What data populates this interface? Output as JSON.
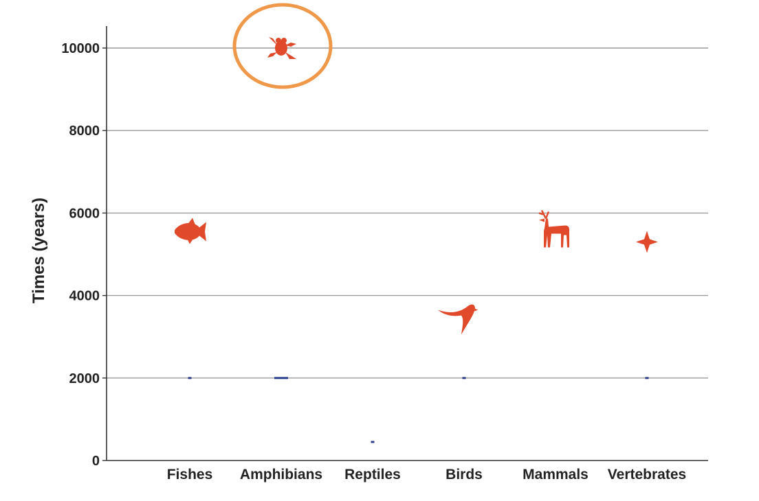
{
  "chart_data": {
    "type": "scatter",
    "title": "",
    "xlabel": "",
    "ylabel": "Times (years)",
    "ylim": [
      0,
      10500
    ],
    "yticks": [
      0,
      2000,
      4000,
      6000,
      8000,
      10000
    ],
    "grid": true,
    "categories": [
      "Fishes",
      "Amphibians",
      "Reptiles",
      "Birds",
      "Mammals",
      "Vertebrates"
    ],
    "series": [
      {
        "marker_color": "#e04a2a",
        "points": [
          {
            "category": "Fishes",
            "value": 5550,
            "icon": "fish-icon"
          },
          {
            "category": "Amphibians",
            "value": 10000,
            "icon": "frog-icon"
          },
          {
            "category": "Birds",
            "value": 3450,
            "icon": "bird-icon"
          },
          {
            "category": "Mammals",
            "value": 5500,
            "icon": "deer-icon"
          },
          {
            "category": "Vertebrates",
            "value": 5300,
            "icon": "star-icon"
          }
        ]
      },
      {
        "marker_color": "#2c3e8f",
        "points": [
          {
            "category": "Fishes",
            "value": 2000
          },
          {
            "category": "Amphibians",
            "value": 2000
          },
          {
            "category": "Reptiles",
            "value": 450
          },
          {
            "category": "Birds",
            "value": 2000
          },
          {
            "category": "Vertebrates",
            "value": 2000
          }
        ]
      }
    ],
    "highlight": {
      "category": "Amphibians",
      "value": 10000,
      "color": "#f0984a"
    },
    "colors": {
      "grid": "#9a9a9a",
      "axis": "#333333",
      "text": "#222222"
    }
  }
}
